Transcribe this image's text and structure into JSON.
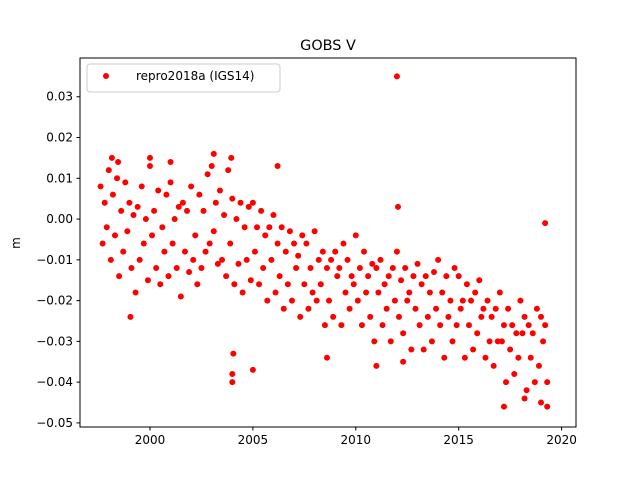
{
  "chart_data": {
    "type": "scatter",
    "title": "GOBS V",
    "xlabel": "",
    "ylabel": "m",
    "xlim": [
      1996.6,
      2020.7
    ],
    "ylim": [
      -0.051,
      0.0395
    ],
    "x_ticks": [
      2000,
      2005,
      2010,
      2015,
      2020
    ],
    "x_tick_labels": [
      "2000",
      "2005",
      "2010",
      "2015",
      "2020"
    ],
    "y_ticks": [
      -0.05,
      -0.04,
      -0.03,
      -0.02,
      -0.01,
      0.0,
      0.01,
      0.02,
      0.03
    ],
    "y_tick_labels": [
      "−0.05",
      "−0.04",
      "−0.03",
      "−0.02",
      "−0.01",
      "0.00",
      "0.01",
      "0.02",
      "0.03"
    ],
    "grid": false,
    "legend_position": "top-left",
    "series": [
      {
        "name": "repro2018a (IGS14)",
        "color": "#ff0000",
        "marker": "circle",
        "x": [
          1997.6,
          1997.7,
          1997.8,
          1997.9,
          1998.0,
          1998.1,
          1998.2,
          1998.3,
          1998.4,
          1998.5,
          1998.6,
          1998.7,
          1998.8,
          1998.9,
          1999.0,
          1999.1,
          1999.2,
          1999.3,
          1999.4,
          1999.5,
          1999.6,
          1999.7,
          1999.8,
          1999.9,
          2000.0,
          2000.1,
          2000.2,
          2000.3,
          2000.4,
          2000.5,
          2000.6,
          2000.7,
          2000.8,
          2000.9,
          2001.0,
          2001.1,
          2001.2,
          2001.3,
          2001.4,
          2001.5,
          2001.6,
          2001.7,
          2001.8,
          2001.9,
          2002.0,
          2002.1,
          2002.2,
          2002.3,
          2002.4,
          2002.5,
          2002.6,
          2002.7,
          2002.8,
          2002.9,
          2003.0,
          2003.1,
          2003.2,
          2003.3,
          2003.4,
          2003.5,
          2003.6,
          2003.7,
          2003.8,
          2003.9,
          2004.0,
          2004.1,
          2004.2,
          2004.3,
          2004.4,
          2004.5,
          2004.6,
          2004.7,
          2004.8,
          2004.9,
          2005.0,
          2005.1,
          2005.2,
          2005.3,
          2005.4,
          2005.5,
          2005.6,
          2005.7,
          2005.8,
          2005.9,
          2006.0,
          2006.1,
          2006.2,
          2006.3,
          2006.4,
          2006.5,
          2006.6,
          2006.7,
          2006.8,
          2006.9,
          2007.0,
          2007.1,
          2007.2,
          2007.3,
          2007.4,
          2007.5,
          2007.6,
          2007.7,
          2007.8,
          2007.9,
          2008.0,
          2008.1,
          2008.2,
          2008.3,
          2008.4,
          2008.5,
          2008.6,
          2008.7,
          2008.8,
          2008.9,
          2009.0,
          2009.1,
          2009.2,
          2009.3,
          2009.4,
          2009.5,
          2009.6,
          2009.7,
          2009.8,
          2009.9,
          2010.0,
          2010.1,
          2010.2,
          2010.3,
          2010.4,
          2010.5,
          2010.6,
          2010.7,
          2010.8,
          2010.9,
          2011.0,
          2011.1,
          2011.2,
          2011.3,
          2011.4,
          2011.5,
          2011.6,
          2011.7,
          2011.8,
          2011.9,
          2012.0,
          2012.1,
          2012.2,
          2012.3,
          2012.4,
          2012.5,
          2012.6,
          2012.7,
          2012.8,
          2012.9,
          2013.0,
          2013.1,
          2013.2,
          2013.3,
          2013.4,
          2013.5,
          2013.6,
          2013.7,
          2013.8,
          2013.9,
          2014.0,
          2014.1,
          2014.2,
          2014.3,
          2014.4,
          2014.5,
          2014.6,
          2014.7,
          2014.8,
          2014.9,
          2015.0,
          2015.1,
          2015.2,
          2015.3,
          2015.4,
          2015.5,
          2015.6,
          2015.7,
          2015.8,
          2015.9,
          2016.0,
          2016.1,
          2016.2,
          2016.3,
          2016.4,
          2016.5,
          2016.6,
          2016.7,
          2016.8,
          2016.9,
          2017.0,
          2017.1,
          2017.2,
          2017.3,
          2017.4,
          2017.5,
          2017.6,
          2017.7,
          2017.8,
          2017.9,
          2018.0,
          2018.1,
          2018.2,
          2018.3,
          2018.4,
          2018.5,
          2018.6,
          2018.7,
          2018.8,
          2018.9,
          2019.0,
          2019.1,
          2019.2,
          2019.3,
          1998.15,
          1998.45,
          1999.05,
          2000.0,
          2001.0,
          2003.1,
          2003.95,
          2004.0,
          2004.0,
          2004.05,
          2005.0,
          2006.2,
          2008.6,
          2011.0,
          2012.0,
          2012.05,
          2012.3,
          2017.2,
          2018.2,
          2019.0,
          2019.2,
          2019.3
        ],
        "y": [
          0.008,
          -0.006,
          0.004,
          -0.002,
          0.012,
          -0.01,
          0.006,
          -0.004,
          0.01,
          -0.014,
          0.002,
          -0.008,
          0.009,
          -0.003,
          0.004,
          -0.012,
          0.001,
          -0.018,
          0.003,
          -0.01,
          0.008,
          -0.006,
          0.0,
          -0.015,
          0.013,
          -0.004,
          0.002,
          -0.012,
          0.007,
          -0.016,
          -0.002,
          -0.008,
          0.006,
          -0.014,
          0.009,
          -0.006,
          0.0,
          -0.012,
          0.003,
          -0.019,
          0.004,
          -0.008,
          0.002,
          -0.013,
          0.008,
          -0.01,
          -0.004,
          -0.016,
          0.006,
          -0.012,
          0.002,
          -0.008,
          0.011,
          -0.006,
          0.013,
          -0.003,
          0.004,
          -0.011,
          0.007,
          -0.01,
          0.001,
          -0.014,
          0.012,
          -0.006,
          0.005,
          -0.016,
          0.0,
          -0.011,
          0.004,
          -0.018,
          -0.002,
          -0.01,
          0.003,
          -0.015,
          0.004,
          -0.008,
          -0.002,
          -0.016,
          0.002,
          -0.012,
          -0.004,
          -0.02,
          -0.002,
          -0.01,
          0.001,
          -0.018,
          -0.006,
          -0.014,
          -0.002,
          -0.022,
          -0.008,
          -0.016,
          -0.003,
          -0.02,
          -0.006,
          -0.012,
          -0.009,
          -0.024,
          -0.004,
          -0.016,
          -0.006,
          -0.022,
          -0.012,
          -0.018,
          -0.003,
          -0.02,
          -0.01,
          -0.016,
          -0.008,
          -0.026,
          -0.012,
          -0.02,
          -0.01,
          -0.024,
          -0.008,
          -0.014,
          -0.012,
          -0.026,
          -0.006,
          -0.018,
          -0.01,
          -0.022,
          -0.014,
          -0.016,
          -0.004,
          -0.02,
          -0.012,
          -0.026,
          -0.008,
          -0.018,
          -0.014,
          -0.024,
          -0.011,
          -0.03,
          -0.012,
          -0.018,
          -0.01,
          -0.026,
          -0.016,
          -0.022,
          -0.014,
          -0.03,
          -0.012,
          -0.02,
          -0.008,
          -0.024,
          -0.015,
          -0.028,
          -0.012,
          -0.02,
          -0.018,
          -0.032,
          -0.014,
          -0.022,
          -0.011,
          -0.026,
          -0.016,
          -0.032,
          -0.014,
          -0.024,
          -0.018,
          -0.03,
          -0.013,
          -0.022,
          -0.01,
          -0.026,
          -0.018,
          -0.034,
          -0.014,
          -0.024,
          -0.02,
          -0.03,
          -0.012,
          -0.026,
          -0.014,
          -0.022,
          -0.02,
          -0.034,
          -0.016,
          -0.026,
          -0.02,
          -0.032,
          -0.018,
          -0.028,
          -0.015,
          -0.024,
          -0.022,
          -0.034,
          -0.02,
          -0.03,
          -0.024,
          -0.036,
          -0.022,
          -0.03,
          -0.018,
          -0.03,
          -0.026,
          -0.04,
          -0.022,
          -0.032,
          -0.026,
          -0.038,
          -0.028,
          -0.034,
          -0.02,
          -0.028,
          -0.024,
          -0.042,
          -0.026,
          -0.034,
          -0.028,
          -0.04,
          -0.022,
          -0.036,
          -0.024,
          -0.03,
          -0.026,
          -0.04,
          0.015,
          0.014,
          -0.024,
          0.015,
          0.014,
          0.016,
          0.015,
          -0.038,
          -0.04,
          -0.033,
          -0.037,
          0.013,
          -0.034,
          -0.036,
          0.035,
          0.003,
          -0.035,
          -0.046,
          -0.044,
          -0.045,
          -0.001,
          -0.046
        ]
      }
    ]
  }
}
